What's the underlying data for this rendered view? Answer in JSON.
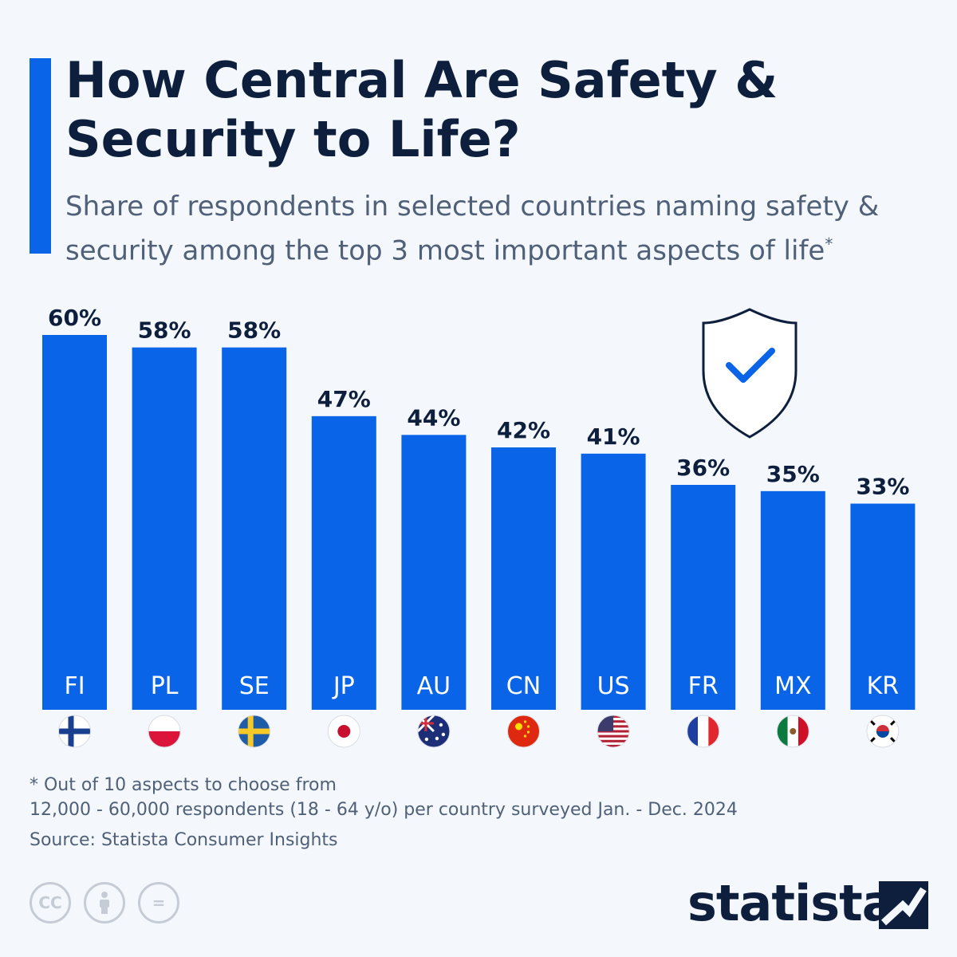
{
  "title": "How Central Are Safety & Security to Life?",
  "subtitle": "Share of respondents in selected countries naming safety & security among the top 3 most important aspects of life",
  "subtitle_marker": "*",
  "colors": {
    "bar": "#0a64e8",
    "title": "#0d1f3c",
    "text": "#4f6078"
  },
  "chart_data": {
    "type": "bar",
    "categories": [
      "FI",
      "PL",
      "SE",
      "JP",
      "AU",
      "CN",
      "US",
      "FR",
      "MX",
      "KR"
    ],
    "values": [
      60,
      58,
      58,
      47,
      44,
      42,
      41,
      36,
      35,
      33
    ],
    "value_labels": [
      "60%",
      "58%",
      "58%",
      "47%",
      "44%",
      "42%",
      "41%",
      "36%",
      "35%",
      "33%"
    ],
    "flags": [
      "finland-flag",
      "poland-flag",
      "sweden-flag",
      "japan-flag",
      "australia-flag",
      "china-flag",
      "usa-flag",
      "france-flag",
      "mexico-flag",
      "south-korea-flag"
    ],
    "ylim": [
      0,
      60
    ],
    "grid": false,
    "decoration": "shield-check-icon"
  },
  "footnotes": {
    "note": "* Out of 10 aspects to choose from",
    "sample": "12,000 - 60,000 respondents (18 - 64 y/o) per country surveyed Jan. - Dec. 2024",
    "source": "Source: Statista Consumer Insights"
  },
  "license_icons": {
    "cc": "CC",
    "by": "",
    "nd": "="
  },
  "brand": "statista"
}
